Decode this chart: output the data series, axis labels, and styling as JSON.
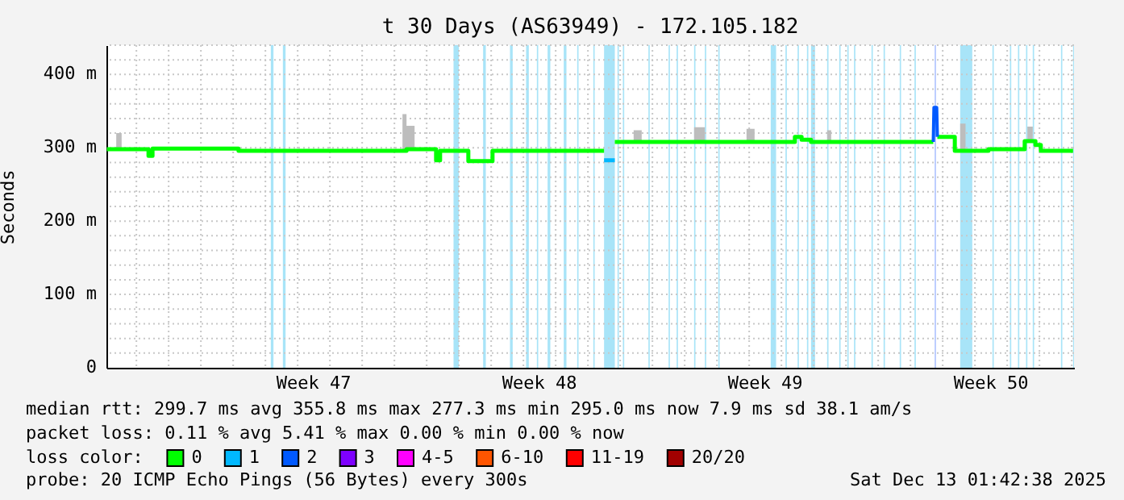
{
  "chart_data": {
    "type": "step",
    "title": "t 30 Days (AS63949) - 172.105.182",
    "ylabel": "Seconds",
    "legend_title": "loss color:",
    "legend": "bottom",
    "grid": true,
    "xlim": [
      "2025-11-13T01:42",
      "2025-12-13T01:42"
    ],
    "xticks": [
      {
        "value": "2025-11-14T00:00",
        "label": null
      },
      {
        "value": "2025-11-15T00:00",
        "label": null
      },
      {
        "value": "2025-11-16T00:00",
        "label": null
      },
      {
        "value": "2025-11-17T00:00",
        "label": null
      },
      {
        "value": "2025-11-18T00:00",
        "label": null
      },
      {
        "value": "2025-11-19T00:00",
        "label": null
      },
      {
        "value": "2025-11-20T00:00",
        "label": null
      },
      {
        "value": "2025-11-21T00:00",
        "label": null
      },
      {
        "value": "2025-11-22T00:00",
        "label": null
      },
      {
        "value": "2025-11-23T00:00",
        "label": null
      },
      {
        "value": "2025-11-24T00:00",
        "label": null
      },
      {
        "value": "2025-11-25T00:00",
        "label": null
      },
      {
        "value": "2025-11-26T00:00",
        "label": null
      },
      {
        "value": "2025-11-27T00:00",
        "label": null
      },
      {
        "value": "2025-11-28T00:00",
        "label": null
      },
      {
        "value": "2025-11-29T00:00",
        "label": null
      },
      {
        "value": "2025-11-30T00:00",
        "label": null
      },
      {
        "value": "2025-12-01T00:00",
        "label": null
      },
      {
        "value": "2025-12-02T00:00",
        "label": null
      },
      {
        "value": "2025-12-03T00:00",
        "label": null
      },
      {
        "value": "2025-12-04T00:00",
        "label": null
      },
      {
        "value": "2025-12-05T00:00",
        "label": null
      },
      {
        "value": "2025-12-06T00:00",
        "label": null
      },
      {
        "value": "2025-12-07T00:00",
        "label": null
      },
      {
        "value": "2025-12-08T00:00",
        "label": null
      },
      {
        "value": "2025-12-09T00:00",
        "label": null
      },
      {
        "value": "2025-12-10T00:00",
        "label": null
      },
      {
        "value": "2025-12-11T00:00",
        "label": null
      },
      {
        "value": "2025-12-12T00:00",
        "label": null
      },
      {
        "value": "2025-12-13T00:00",
        "label": null
      },
      {
        "value": "2025-11-19T12:00",
        "label": "Week 47"
      },
      {
        "value": "2025-11-26T12:00",
        "label": "Week 48"
      },
      {
        "value": "2025-12-03T12:00",
        "label": "Week 49"
      },
      {
        "value": "2025-12-10T12:00",
        "label": "Week 50"
      }
    ],
    "ylim": [
      0,
      440
    ],
    "yticks": [
      0,
      {
        "value": 100,
        "label": "100 m"
      },
      {
        "value": 200,
        "label": "200 m"
      },
      {
        "value": 300,
        "label": "300 m"
      },
      {
        "value": 400,
        "label": "400 m"
      },
      {
        "value": 20,
        "label": null
      },
      {
        "value": 40,
        "label": null
      },
      {
        "value": 60,
        "label": null
      },
      {
        "value": 80,
        "label": null
      },
      {
        "value": 120,
        "label": null
      },
      {
        "value": 140,
        "label": null
      },
      {
        "value": 160,
        "label": null
      },
      {
        "value": 180,
        "label": null
      },
      {
        "value": 220,
        "label": null
      },
      {
        "value": 240,
        "label": null
      },
      {
        "value": 260,
        "label": null
      },
      {
        "value": 280,
        "label": null
      },
      {
        "value": 320,
        "label": null
      },
      {
        "value": 340,
        "label": null
      },
      {
        "value": 360,
        "label": null
      },
      {
        "value": 380,
        "label": null
      },
      {
        "value": 420,
        "label": null
      },
      {
        "value": 440,
        "label": null
      }
    ],
    "series": [
      {
        "name": "0",
        "color": "#00ff00",
        "x": [
          "2025-11-13T02:00",
          "2025-11-13T09:00",
          "2025-11-13T13:00",
          "2025-11-14T09:00",
          "2025-11-14T12:00",
          "2025-11-17T04:00",
          "2025-11-22T06:00",
          "2025-11-22T09:00",
          "2025-11-22T15:00",
          "2025-11-23T07:00",
          "2025-11-23T10:00",
          "2025-11-24T07:00",
          "2025-11-25T01:00",
          "2025-11-28T12:00",
          "2025-11-28T13:00",
          "2025-11-28T20:00",
          "2025-11-29T10:00",
          "2025-11-29T16:00",
          "2025-12-01T07:00",
          "2025-12-01T15:00",
          "2025-12-02T22:00",
          "2025-12-03T04:00",
          "2025-12-04T10:00",
          "2025-12-04T15:00",
          "2025-12-04T22:00",
          "2025-12-05T10:00",
          "2025-12-05T13:00",
          "2025-12-08T17:00",
          "2025-12-08T17:30",
          "2025-12-08T20:00",
          "2025-12-09T09:00",
          "2025-12-09T13:00",
          "2025-12-09T17:00",
          "2025-12-10T10:00",
          "2025-12-11T13:00",
          "2025-12-11T15:00",
          "2025-12-11T19:00",
          "2025-12-11T21:00",
          "2025-12-12T01:00",
          "2025-12-13T01:00"
        ],
        "values": [
          298,
          298,
          298,
          289,
          299,
          296,
          296,
          298,
          298,
          283,
          296,
          282,
          296,
          296,
          null,
          308,
          308,
          308,
          308,
          308,
          308,
          308,
          315,
          311,
          308,
          308,
          308,
          308,
          null,
          315,
          296,
          296,
          296,
          298,
          309,
          309,
          309,
          304,
          296,
          296
        ],
        "lower": [
          298,
          298,
          298,
          289,
          299,
          296,
          296,
          298,
          298,
          283,
          296,
          282,
          296,
          296,
          null,
          308,
          308,
          308,
          308,
          308,
          308,
          308,
          315,
          311,
          308,
          308,
          308,
          308,
          null,
          315,
          296,
          296,
          296,
          298,
          309,
          309,
          309,
          304,
          296,
          296
        ],
        "upper": [
          298,
          320,
          298,
          289,
          299,
          296,
          346,
          330,
          298,
          283,
          296,
          282,
          296,
          296,
          null,
          308,
          324,
          308,
          328,
          308,
          326,
          308,
          315,
          311,
          308,
          324,
          308,
          308,
          null,
          315,
          296,
          333,
          296,
          298,
          309,
          329,
          309,
          304,
          296,
          296
        ]
      },
      {
        "name": "1",
        "color": "#00b8ff",
        "x": [
          "2025-11-28T12:00",
          "2025-11-28T20:00"
        ],
        "values": [
          283,
          283
        ]
      },
      {
        "name": "2",
        "color": "#0059ff",
        "type": "line",
        "x": [
          "2025-12-08T17:00",
          "2025-12-08T17:30",
          "2025-12-08T19:30",
          "2025-12-08T20:00"
        ],
        "values": [
          308,
          355,
          355,
          315
        ]
      },
      {
        "name": "3",
        "color": "#7e00ff"
      },
      {
        "name": "4-5",
        "color": "#ff00ff"
      },
      {
        "name": "6-10",
        "color": "#ff5500"
      },
      {
        "name": "11-19",
        "color": "#ff0000"
      },
      {
        "name": "20/20",
        "color": "#a10000"
      }
    ],
    "bands": [
      {
        "axis": "x",
        "from": "2025-11-18T04:00",
        "to": "2025-11-18T06:00",
        "color": "#a8e4f8"
      },
      {
        "axis": "x",
        "from": "2025-11-18T13:00",
        "to": "2025-11-18T15:00",
        "color": "#a8e4f8"
      },
      {
        "axis": "x",
        "from": "2025-11-23T20:00",
        "to": "2025-11-24T00:00",
        "color": "#a8e4f8"
      },
      {
        "axis": "x",
        "from": "2025-11-24T18:00",
        "to": "2025-11-24T20:00",
        "color": "#a8e4f8"
      },
      {
        "axis": "x",
        "from": "2025-11-25T14:00",
        "to": "2025-11-25T16:00",
        "color": "#a8e4f8"
      },
      {
        "axis": "x",
        "from": "2025-11-26T02:00",
        "to": "2025-11-26T04:00",
        "color": "#a8e4f8"
      },
      {
        "axis": "x",
        "from": "2025-11-26T10:00",
        "to": "2025-11-26T11:00",
        "color": "#a8e4f8"
      },
      {
        "axis": "x",
        "from": "2025-11-26T18:00",
        "to": "2025-11-26T20:00",
        "color": "#a8e4f8"
      },
      {
        "axis": "x",
        "from": "2025-11-27T06:00",
        "to": "2025-11-27T08:00",
        "color": "#a8e4f8"
      },
      {
        "axis": "x",
        "from": "2025-11-27T16:00",
        "to": "2025-11-27T17:00",
        "color": "#a8e4f8"
      },
      {
        "axis": "x",
        "from": "2025-11-28T04:00",
        "to": "2025-11-28T05:00",
        "color": "#a8e4f8"
      },
      {
        "axis": "x",
        "from": "2025-11-28T12:00",
        "to": "2025-11-28T20:00",
        "color": "#a8e4f8"
      },
      {
        "axis": "x",
        "from": "2025-11-28T22:00",
        "to": "2025-11-28T23:00",
        "color": "#a8e4f8"
      },
      {
        "axis": "x",
        "from": "2025-11-29T02:00",
        "to": "2025-11-29T03:00",
        "color": "#a8e4f8"
      },
      {
        "axis": "x",
        "from": "2025-11-29T21:00",
        "to": "2025-11-29T22:00",
        "color": "#a8e4f8"
      },
      {
        "axis": "x",
        "from": "2025-11-30T12:00",
        "to": "2025-11-30T13:00",
        "color": "#a8e4f8"
      },
      {
        "axis": "x",
        "from": "2025-11-30T18:00",
        "to": "2025-11-30T19:00",
        "color": "#a8e4f8"
      },
      {
        "axis": "x",
        "from": "2025-12-01T07:00",
        "to": "2025-12-01T08:00",
        "color": "#a8e4f8"
      },
      {
        "axis": "x",
        "from": "2025-12-01T15:00",
        "to": "2025-12-01T16:00",
        "color": "#a8e4f8"
      },
      {
        "axis": "x",
        "from": "2025-12-02T01:00",
        "to": "2025-12-02T02:00",
        "color": "#a8e4f8"
      },
      {
        "axis": "x",
        "from": "2025-12-03T16:00",
        "to": "2025-12-03T20:00",
        "color": "#a8e4f8"
      },
      {
        "axis": "x",
        "from": "2025-12-04T03:00",
        "to": "2025-12-04T04:00",
        "color": "#a8e4f8"
      },
      {
        "axis": "x",
        "from": "2025-12-04T12:00",
        "to": "2025-12-04T13:00",
        "color": "#a8e4f8"
      },
      {
        "axis": "x",
        "from": "2025-12-04T19:00",
        "to": "2025-12-04T20:00",
        "color": "#a8e4f8"
      },
      {
        "axis": "x",
        "from": "2025-12-04T22:00",
        "to": "2025-12-05T01:00",
        "color": "#a8e4f8"
      },
      {
        "axis": "x",
        "from": "2025-12-05T10:00",
        "to": "2025-12-05T11:00",
        "color": "#a8e4f8"
      },
      {
        "axis": "x",
        "from": "2025-12-05T19:00",
        "to": "2025-12-05T20:00",
        "color": "#a8e4f8"
      },
      {
        "axis": "x",
        "from": "2025-12-06T01:00",
        "to": "2025-12-06T02:00",
        "color": "#a8e4f8"
      },
      {
        "axis": "x",
        "from": "2025-12-06T06:00",
        "to": "2025-12-06T07:00",
        "color": "#a8e4f8"
      },
      {
        "axis": "x",
        "from": "2025-12-06T19:00",
        "to": "2025-12-06T20:00",
        "color": "#a8e4f8"
      },
      {
        "axis": "x",
        "from": "2025-12-07T04:00",
        "to": "2025-12-07T05:00",
        "color": "#a8e4f8"
      },
      {
        "axis": "x",
        "from": "2025-12-07T16:00",
        "to": "2025-12-07T17:00",
        "color": "#a8e4f8"
      },
      {
        "axis": "x",
        "from": "2025-12-08T03:00",
        "to": "2025-12-08T04:00",
        "color": "#a8e4f8"
      },
      {
        "axis": "x",
        "from": "2025-12-08T18:00",
        "to": "2025-12-08T19:00",
        "color": "#b0c4ff"
      },
      {
        "axis": "x",
        "from": "2025-12-09T13:00",
        "to": "2025-12-09T22:00",
        "color": "#a8e4f8"
      },
      {
        "axis": "x",
        "from": "2025-12-10T13:00",
        "to": "2025-12-10T14:00",
        "color": "#a8e4f8"
      },
      {
        "axis": "x",
        "from": "2025-12-11T02:00",
        "to": "2025-12-11T03:00",
        "color": "#a8e4f8"
      },
      {
        "axis": "x",
        "from": "2025-12-11T08:00",
        "to": "2025-12-11T09:00",
        "color": "#a8e4f8"
      },
      {
        "axis": "x",
        "from": "2025-12-11T14:00",
        "to": "2025-12-11T15:00",
        "color": "#a8e4f8"
      },
      {
        "axis": "x",
        "from": "2025-12-11T19:00",
        "to": "2025-12-11T20:00",
        "color": "#a8e4f8"
      },
      {
        "axis": "x",
        "from": "2025-12-12T16:00",
        "to": "2025-12-12T17:00",
        "color": "#a8e4f8"
      },
      {
        "axis": "x",
        "from": "2025-12-13T01:00",
        "to": "2025-12-13T01:42",
        "color": "#a8e4f8"
      }
    ],
    "annotations": [
      "median rtt: 299.7 ms avg 355.8 ms max 277.3 ms min 295.0 ms now 7.9 ms sd 38.1 am/s",
      "packet loss: 0.11 % avg 5.41 % max 0.00 % min 0.00 % now",
      "probe: 20 ICMP Echo Pings (56 Bytes) every 300s",
      "Sat Dec 13 01:42:38 2025"
    ]
  }
}
